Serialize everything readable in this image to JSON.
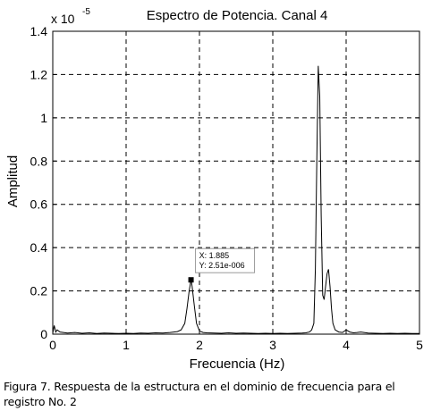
{
  "caption": "Figura 7. Respuesta de la estructura en el dominio de frecuencia para el registro No. 2",
  "chart_data": {
    "type": "line",
    "title": "Espectro de Potencia. Canal 4",
    "xlabel": "Frecuencia (Hz)",
    "ylabel": "Amplitud",
    "y_multiplier_base": "x 10",
    "y_multiplier_exponent": "-5",
    "xlim": [
      0,
      5
    ],
    "ylim": [
      0,
      1.4
    ],
    "x_ticks": [
      0,
      1,
      2,
      3,
      4,
      5
    ],
    "x_tick_labels": [
      "0",
      "1",
      "2",
      "3",
      "4",
      "5"
    ],
    "y_ticks": [
      0,
      0.2,
      0.4,
      0.6,
      0.8,
      1,
      1.2,
      1.4
    ],
    "y_tick_labels": [
      "0",
      "0.2",
      "0.4",
      "0.6",
      "0.8",
      "1",
      "1.2",
      "1.4"
    ],
    "grid": true,
    "line_color": "#000000",
    "series": [
      {
        "x": [
          0,
          0.02,
          0.04,
          0.06,
          0.1,
          0.2,
          0.3,
          0.4,
          0.5,
          0.6,
          0.7,
          0.8,
          0.9,
          1.0,
          1.1,
          1.2,
          1.3,
          1.4,
          1.5,
          1.6,
          1.7,
          1.75,
          1.8,
          1.83,
          1.86,
          1.885,
          1.9,
          1.93,
          1.96,
          2.0,
          2.05,
          2.1,
          2.2,
          2.3,
          2.4,
          2.5,
          2.6,
          2.7,
          2.8,
          2.9,
          3.0,
          3.1,
          3.2,
          3.3,
          3.4,
          3.45,
          3.5,
          3.53,
          3.56,
          3.58,
          3.6,
          3.62,
          3.64,
          3.66,
          3.68,
          3.7,
          3.72,
          3.74,
          3.76,
          3.78,
          3.8,
          3.82,
          3.85,
          3.9,
          3.95,
          4.0,
          4.05,
          4.1,
          4.15,
          4.2,
          4.3,
          4.4,
          4.5,
          4.6,
          4.7,
          4.8,
          4.9,
          5.0
        ],
        "y": [
          0.005,
          0.04,
          0.01,
          0.02,
          0.01,
          0.005,
          0.008,
          0.004,
          0.006,
          0.003,
          0.005,
          0.004,
          0.003,
          0.004,
          0.003,
          0.005,
          0.004,
          0.006,
          0.005,
          0.008,
          0.012,
          0.02,
          0.05,
          0.12,
          0.2,
          0.251,
          0.22,
          0.13,
          0.05,
          0.015,
          0.008,
          0.006,
          0.005,
          0.004,
          0.006,
          0.004,
          0.005,
          0.004,
          0.003,
          0.004,
          0.003,
          0.004,
          0.003,
          0.004,
          0.005,
          0.006,
          0.01,
          0.02,
          0.05,
          0.3,
          0.8,
          1.24,
          1.1,
          0.55,
          0.18,
          0.16,
          0.22,
          0.28,
          0.3,
          0.22,
          0.12,
          0.05,
          0.02,
          0.01,
          0.008,
          0.02,
          0.01,
          0.006,
          0.008,
          0.01,
          0.005,
          0.004,
          0.003,
          0.004,
          0.003,
          0.004,
          0.003,
          0.003
        ]
      }
    ],
    "datatip": {
      "x": 1.885,
      "y": 0.251,
      "x_label": "X: 1.885",
      "y_label": "Y: 2.51e-006"
    }
  }
}
